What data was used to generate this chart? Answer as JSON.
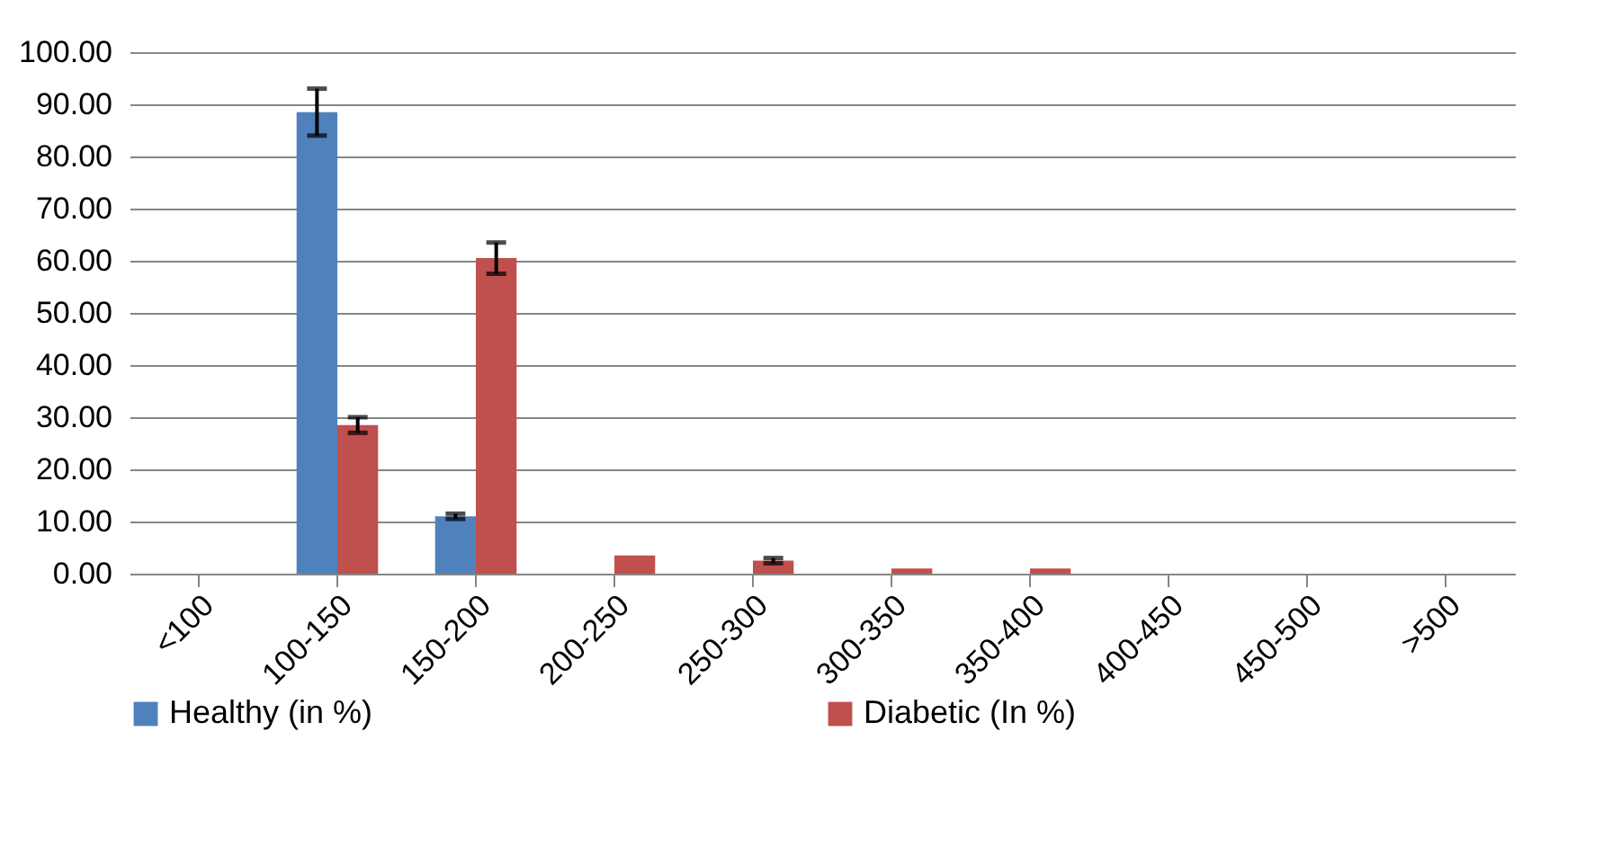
{
  "chart_data": {
    "type": "bar",
    "categories": [
      "<100",
      "100-150",
      "150-200",
      "200-250",
      "250-300",
      "300-350",
      "350-400",
      "400-450",
      "450-500",
      ">500"
    ],
    "series": [
      {
        "name": "Healthy (in %)",
        "color": "#4f81bd",
        "values": [
          0,
          88.5,
          11,
          0,
          0,
          0,
          0,
          0,
          0,
          0
        ],
        "errors": [
          null,
          4.5,
          0.5,
          null,
          null,
          null,
          null,
          null,
          null,
          null
        ]
      },
      {
        "name": "Diabetic (In %)",
        "color": "#c0504d",
        "values": [
          0,
          28.5,
          60.5,
          3.5,
          2.5,
          1,
          1,
          0,
          0,
          0
        ],
        "errors": [
          null,
          1.5,
          3,
          null,
          0.5,
          null,
          null,
          null,
          null,
          null
        ]
      }
    ],
    "ylim": [
      0,
      100
    ],
    "yticks": [
      {
        "value": 0,
        "label": "0.00"
      },
      {
        "value": 10,
        "label": "10.00"
      },
      {
        "value": 20,
        "label": "20.00"
      },
      {
        "value": 30,
        "label": "30.00"
      },
      {
        "value": 40,
        "label": "40.00"
      },
      {
        "value": 50,
        "label": "50.00"
      },
      {
        "value": 60,
        "label": "60.00"
      },
      {
        "value": 70,
        "label": "70.00"
      },
      {
        "value": 80,
        "label": "80.00"
      },
      {
        "value": 90,
        "label": "90.00"
      },
      {
        "value": 100,
        "label": "100.00"
      }
    ],
    "grid": "y",
    "legend": "bottom"
  }
}
